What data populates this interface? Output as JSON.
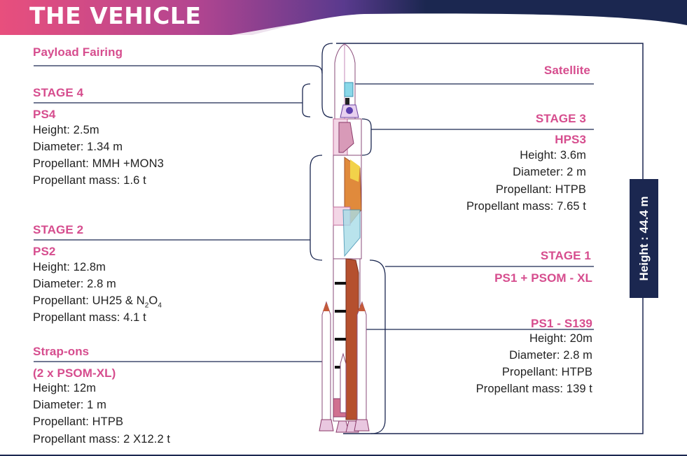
{
  "title": "THE VEHICLE",
  "total_height_label": "Height : 44.4 m",
  "colors": {
    "pink": "#d64d8e",
    "navy": "#1b2750",
    "banner_start": "#e84f7d",
    "banner_mid": "#8b3fa0"
  },
  "left": {
    "payload_fairing": "Payload Fairing",
    "stage4": {
      "heading": "STAGE 4",
      "name": "PS4",
      "height": "Height: 2.5m",
      "diameter": "Diameter: 1.34 m",
      "propellant": "Propellant: MMH +MON3",
      "mass": "Propellant mass: 1.6 t"
    },
    "stage2": {
      "heading": "STAGE 2",
      "name": "PS2",
      "height": "Height: 12.8m",
      "diameter": "Diameter: 2.8 m",
      "propellant_prefix": "Propellant: UH25 & N",
      "propellant_sub1": "2",
      "propellant_mid": "O",
      "propellant_sub2": "4",
      "mass": "Propellant mass: 4.1 t"
    },
    "strapons": {
      "heading": "Strap-ons",
      "name": "(2 x PSOM-XL)",
      "height": "Height: 12m",
      "diameter": "Diameter: 1 m",
      "propellant": "Propellant: HTPB",
      "mass": "Propellant mass: 2 X12.2 t"
    }
  },
  "right": {
    "satellite": "Satellite",
    "stage3": {
      "heading": "STAGE 3",
      "name": "HPS3",
      "height": "Height: 3.6m",
      "diameter": "Diameter: 2 m",
      "propellant": "Propellant: HTPB",
      "mass": "Propellant mass: 7.65 t"
    },
    "stage1": {
      "heading": "STAGE 1",
      "combo": "PS1 + PSOM - XL",
      "name": "PS1 - S139",
      "height": "Height: 20m",
      "diameter": "Diameter: 2.8 m",
      "propellant": "Propellant: HTPB",
      "mass": "Propellant mass: 139 t"
    }
  }
}
